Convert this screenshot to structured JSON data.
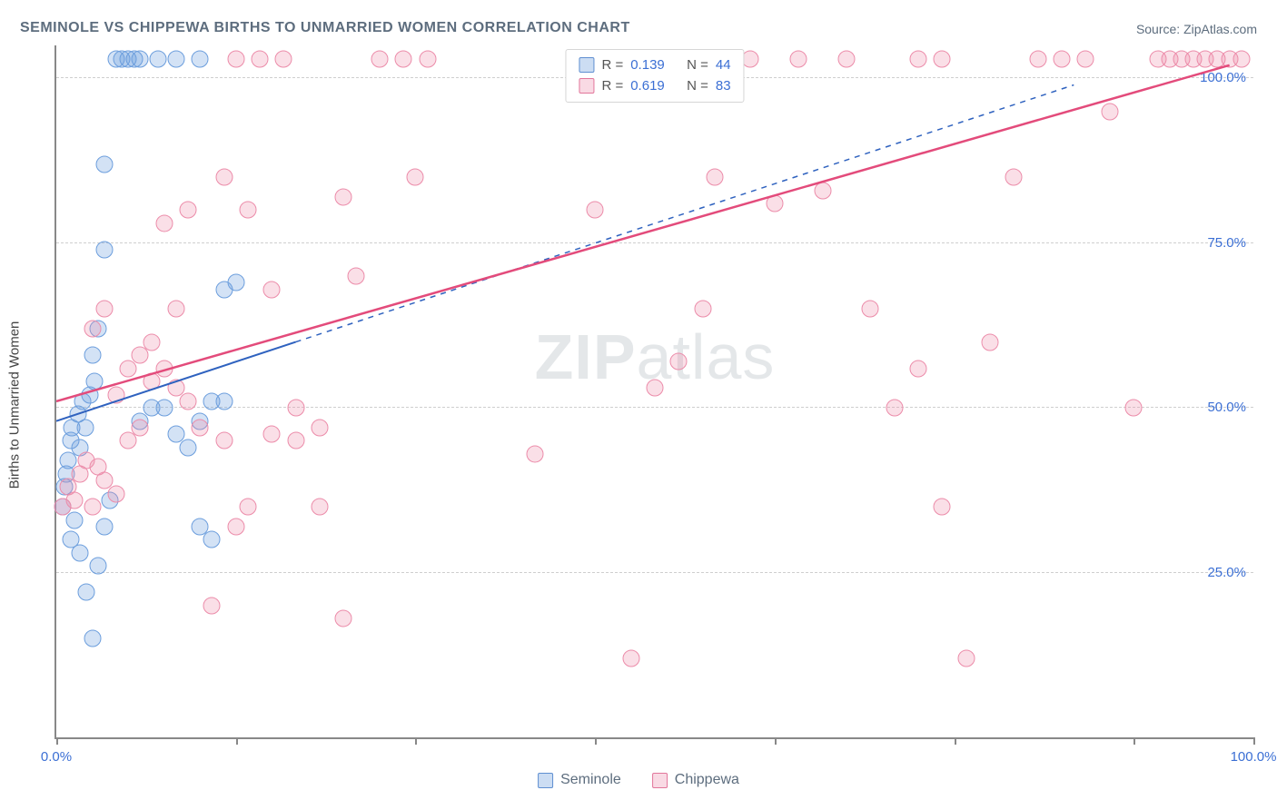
{
  "title": "SEMINOLE VS CHIPPEWA BIRTHS TO UNMARRIED WOMEN CORRELATION CHART",
  "source_label": "Source: ",
  "source_value": "ZipAtlas.com",
  "ylabel": "Births to Unmarried Women",
  "watermark_bold": "ZIP",
  "watermark_light": "atlas",
  "chart": {
    "type": "scatter",
    "xlim": [
      0,
      100
    ],
    "ylim": [
      0,
      105
    ],
    "y_gridlines": [
      25,
      50,
      75,
      100
    ],
    "y_tick_labels": [
      "25.0%",
      "50.0%",
      "75.0%",
      "100.0%"
    ],
    "x_ticks": [
      0,
      15,
      30,
      45,
      60,
      75,
      90,
      100
    ],
    "x_tick_labels_shown": {
      "0": "0.0%",
      "100": "100.0%"
    },
    "background_color": "#ffffff",
    "grid_color": "#cfcfcf",
    "axis_color": "#888888",
    "tick_label_color": "#3b6fd4",
    "dot_radius": 8.5,
    "dot_border_width": 1.5,
    "series": [
      {
        "name": "Seminole",
        "fill": "rgba(108,158,221,0.30)",
        "stroke": "#6c9edd",
        "R": "0.139",
        "N": "44",
        "trend": {
          "x1": 0,
          "y1": 48,
          "x2": 20,
          "y2": 60,
          "dash_x2": 85,
          "dash_y2": 99,
          "color": "#2f62bf",
          "width": 2
        },
        "points": [
          [
            0.5,
            35
          ],
          [
            0.7,
            38
          ],
          [
            0.8,
            40
          ],
          [
            1,
            42
          ],
          [
            1.2,
            45
          ],
          [
            1.3,
            47
          ],
          [
            1.5,
            33
          ],
          [
            1.2,
            30
          ],
          [
            2,
            28
          ],
          [
            2.5,
            22
          ],
          [
            3,
            15
          ],
          [
            3.5,
            26
          ],
          [
            4,
            32
          ],
          [
            4.5,
            36
          ],
          [
            1.8,
            49
          ],
          [
            2.2,
            51
          ],
          [
            2.8,
            52
          ],
          [
            3.2,
            54
          ],
          [
            2,
            44
          ],
          [
            2.4,
            47
          ],
          [
            3,
            58
          ],
          [
            3.5,
            62
          ],
          [
            4,
            74
          ],
          [
            5,
            103
          ],
          [
            5.5,
            103
          ],
          [
            6,
            103
          ],
          [
            6.5,
            103
          ],
          [
            7,
            103
          ],
          [
            8.5,
            103
          ],
          [
            10,
            103
          ],
          [
            12,
            103
          ],
          [
            7,
            48
          ],
          [
            8,
            50
          ],
          [
            9,
            50
          ],
          [
            10,
            46
          ],
          [
            11,
            44
          ],
          [
            12,
            48
          ],
          [
            13,
            51
          ],
          [
            14,
            51
          ],
          [
            12,
            32
          ],
          [
            13,
            30
          ],
          [
            14,
            68
          ],
          [
            15,
            69
          ],
          [
            4,
            87
          ]
        ]
      },
      {
        "name": "Chippewa",
        "fill": "rgba(236,140,170,0.28)",
        "stroke": "#ec8caa",
        "R": "0.619",
        "N": "83",
        "trend": {
          "x1": 0,
          "y1": 51,
          "x2": 98,
          "y2": 102,
          "color": "#e34b7b",
          "width": 2.5
        },
        "points": [
          [
            0.5,
            35
          ],
          [
            1,
            38
          ],
          [
            1.5,
            36
          ],
          [
            2,
            40
          ],
          [
            2.5,
            42
          ],
          [
            3,
            35
          ],
          [
            3.5,
            41
          ],
          [
            4,
            39
          ],
          [
            5,
            37
          ],
          [
            6,
            45
          ],
          [
            7,
            47
          ],
          [
            8,
            60
          ],
          [
            9,
            78
          ],
          [
            10,
            65
          ],
          [
            5,
            52
          ],
          [
            6,
            56
          ],
          [
            7,
            58
          ],
          [
            8,
            54
          ],
          [
            9,
            56
          ],
          [
            10,
            53
          ],
          [
            11,
            80
          ],
          [
            12,
            47
          ],
          [
            14,
            45
          ],
          [
            15,
            32
          ],
          [
            16,
            35
          ],
          [
            18,
            46
          ],
          [
            20,
            45
          ],
          [
            22,
            47
          ],
          [
            24,
            82
          ],
          [
            25,
            70
          ],
          [
            27,
            103
          ],
          [
            29,
            103
          ],
          [
            31,
            103
          ],
          [
            14,
            85
          ],
          [
            16,
            80
          ],
          [
            18,
            68
          ],
          [
            20,
            50
          ],
          [
            22,
            35
          ],
          [
            24,
            18
          ],
          [
            40,
            43
          ],
          [
            45,
            80
          ],
          [
            50,
            53
          ],
          [
            52,
            57
          ],
          [
            54,
            65
          ],
          [
            56,
            103
          ],
          [
            58,
            103
          ],
          [
            60,
            81
          ],
          [
            62,
            103
          ],
          [
            64,
            83
          ],
          [
            66,
            103
          ],
          [
            68,
            65
          ],
          [
            70,
            50
          ],
          [
            72,
            56
          ],
          [
            74,
            35
          ],
          [
            76,
            12
          ],
          [
            48,
            12
          ],
          [
            50,
            103
          ],
          [
            78,
            60
          ],
          [
            80,
            85
          ],
          [
            82,
            103
          ],
          [
            84,
            103
          ],
          [
            86,
            103
          ],
          [
            88,
            95
          ],
          [
            90,
            50
          ],
          [
            92,
            103
          ],
          [
            93,
            103
          ],
          [
            94,
            103
          ],
          [
            95,
            103
          ],
          [
            96,
            103
          ],
          [
            97,
            103
          ],
          [
            98,
            103
          ],
          [
            99,
            103
          ],
          [
            72,
            103
          ],
          [
            74,
            103
          ],
          [
            30,
            85
          ],
          [
            55,
            85
          ],
          [
            15,
            103
          ],
          [
            17,
            103
          ],
          [
            19,
            103
          ],
          [
            13,
            20
          ],
          [
            11,
            51
          ],
          [
            3,
            62
          ],
          [
            4,
            65
          ]
        ]
      }
    ]
  },
  "legend_top": {
    "r_label": "R =",
    "n_label": "N ="
  },
  "legend_bottom": [
    {
      "swatch": "sw-blue",
      "label": "Seminole"
    },
    {
      "swatch": "sw-pink",
      "label": "Chippewa"
    }
  ]
}
